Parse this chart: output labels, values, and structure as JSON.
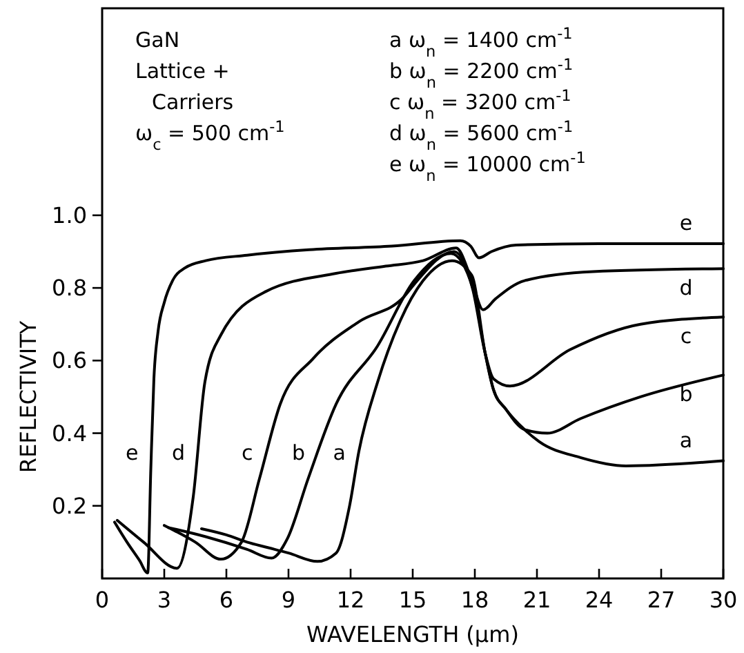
{
  "chart_data": {
    "type": "line",
    "xlabel": "WAVELENGTH (μm)",
    "ylabel": "REFLECTIVITY",
    "xlim": [
      0,
      30
    ],
    "xticks": [
      0,
      3,
      6,
      9,
      12,
      15,
      18,
      21,
      24,
      27,
      30
    ],
    "ylim": [
      0,
      1.57
    ],
    "yticks": [
      0.2,
      0.4,
      0.6,
      0.8,
      {
        "value": 1,
        "label": "1.0"
      }
    ],
    "grid": false,
    "marker": "none",
    "line_style": "solid",
    "series": [
      {
        "name": "a",
        "color": "#000000",
        "x": [
          4.8,
          6,
          7,
          8,
          9,
          10.4,
          11.3,
          11.95,
          12.4,
          13.3,
          14.4,
          15.5,
          16.9,
          17.85,
          18.5,
          18.9,
          19.5,
          20.4,
          21.1,
          23.1,
          25.3,
          30
        ],
        "values": [
          0.137,
          0.12,
          0.1,
          0.085,
          0.07,
          0.047,
          0.07,
          0.2,
          0.35,
          0.54,
          0.71,
          0.82,
          0.875,
          0.835,
          0.62,
          0.52,
          0.466,
          0.41,
          0.377,
          0.333,
          0.31,
          0.324
        ]
      },
      {
        "name": "b",
        "color": "#000000",
        "x": [
          3.2,
          5,
          7,
          8.18,
          8.95,
          9.95,
          11.3,
          13.3,
          15.07,
          16.85,
          17.9,
          18.5,
          18.9,
          19.5,
          20.4,
          21.5,
          23.1,
          26,
          30
        ],
        "values": [
          0.14,
          0.115,
          0.08,
          0.056,
          0.11,
          0.275,
          0.48,
          0.64,
          0.82,
          0.895,
          0.8,
          0.62,
          0.52,
          0.466,
          0.41,
          0.4,
          0.44,
          0.5,
          0.56
        ]
      },
      {
        "name": "c",
        "color": "#000000",
        "x": [
          3.0,
          4.5,
          5.73,
          6.73,
          7.6,
          8.6,
          10.2,
          12.4,
          14.6,
          15.07,
          17.0,
          17.9,
          18.5,
          18.9,
          19.7,
          22.6,
          26,
          30
        ],
        "values": [
          0.146,
          0.1,
          0.053,
          0.1,
          0.275,
          0.48,
          0.606,
          0.707,
          0.777,
          0.81,
          0.9,
          0.796,
          0.62,
          0.55,
          0.53,
          0.63,
          0.7,
          0.72
        ]
      },
      {
        "name": "d",
        "color": "#000000",
        "x": [
          0.73,
          2,
          3.62,
          4.4,
          4.96,
          5.73,
          7.9,
          11.3,
          13.7,
          15.5,
          17.1,
          17.8,
          18.4,
          19,
          20.4,
          23.7,
          30
        ],
        "values": [
          0.16,
          0.1,
          0.028,
          0.225,
          0.54,
          0.67,
          0.79,
          0.84,
          0.86,
          0.875,
          0.91,
          0.83,
          0.74,
          0.77,
          0.82,
          0.845,
          0.853
        ]
      },
      {
        "name": "e",
        "color": "#000000",
        "x": [
          0.6,
          1.2,
          1.8,
          2.2,
          2.35,
          2.5,
          2.7,
          3.0,
          3.4,
          4.0,
          5,
          7,
          10,
          14,
          17.3,
          17.8,
          18.2,
          18.8,
          20,
          24,
          30
        ],
        "values": [
          0.155,
          0.1,
          0.05,
          0.015,
          0.3,
          0.55,
          0.68,
          0.76,
          0.82,
          0.855,
          0.875,
          0.89,
          0.905,
          0.915,
          0.93,
          0.915,
          0.883,
          0.9,
          0.918,
          0.922,
          0.922
        ]
      }
    ],
    "annotations": [
      "GaN",
      "Lattice +",
      "Carriers",
      "ω$_{c}$ = 500 cm$^{-1}$",
      "a  ω$_{n}$ = 1400 cm$^{-1}$",
      "b  ω$_{n}$ = 2200 cm$^{-1}$",
      "c  ω$_{n}$ = 3200 cm$^{-1}$",
      "d  ω$_{n}$ = 5600 cm$^{-1}$",
      "e  ω$_{n}$ = 10000 cm$^{-1}$"
    ]
  }
}
